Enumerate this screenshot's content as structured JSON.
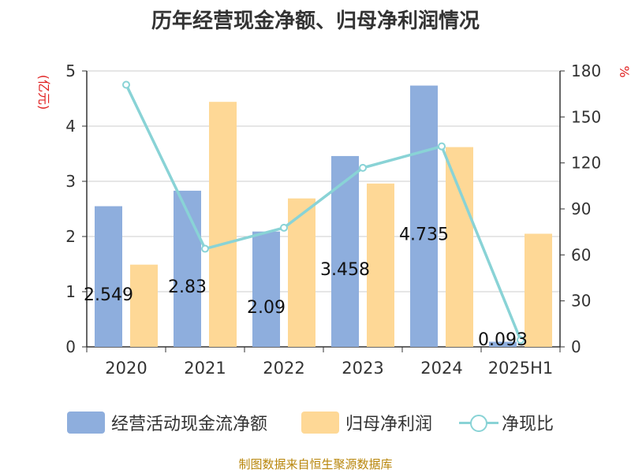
{
  "title": "历年经营现金净额、归母净利润情况",
  "source": "制图数据来自恒生聚源数据库",
  "colors": {
    "cash": "#8eaedd",
    "profit": "#fed896",
    "ratio": "#89d3d6"
  },
  "chart_data": {
    "type": "bar",
    "categories": [
      "2020",
      "2021",
      "2022",
      "2023",
      "2024",
      "2025H1"
    ],
    "ylabel_left": "(亿元)",
    "ylabel_right": "%",
    "ylim_left": [
      0,
      5
    ],
    "ylim_right": [
      0,
      180
    ],
    "yticks_left": [
      "0",
      "1",
      "2",
      "3",
      "4",
      "5"
    ],
    "yticks_right": [
      "0",
      "30",
      "60",
      "90",
      "120",
      "150",
      "180"
    ],
    "grid": true,
    "legend_position": "bottom",
    "series": [
      {
        "name": "经营活动现金流净额",
        "type": "bar",
        "axis": "left",
        "values": [
          2.549,
          2.83,
          2.09,
          3.458,
          4.735,
          0.093
        ],
        "labels": [
          "2.549",
          "2.83",
          "2.09",
          "3.458",
          "4.735",
          "0.093"
        ]
      },
      {
        "name": "归母净利润",
        "type": "bar",
        "axis": "left",
        "values": [
          1.49,
          4.44,
          2.69,
          2.96,
          3.62,
          2.05
        ]
      },
      {
        "name": "净现比",
        "type": "line",
        "axis": "right",
        "values": [
          171,
          64,
          77.7,
          116.8,
          130.8,
          4.5
        ]
      }
    ]
  }
}
